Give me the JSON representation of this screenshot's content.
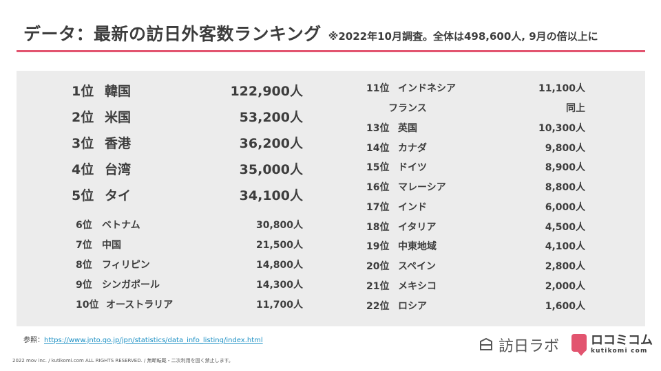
{
  "header": {
    "title": "データ：最新の訪日外客数ランキング",
    "note": "※2022年10月調査。全体は498,600人, 9月の倍以上に"
  },
  "ranking_left_top": [
    {
      "rank": "1位",
      "country": "韓国",
      "value": "122,900人"
    },
    {
      "rank": "2位",
      "country": "米国",
      "value": "53,200人"
    },
    {
      "rank": "3位",
      "country": "香港",
      "value": "36,200人"
    },
    {
      "rank": "4位",
      "country": "台湾",
      "value": "35,000人"
    },
    {
      "rank": "5位",
      "country": "タイ",
      "value": "34,100人"
    }
  ],
  "ranking_left_bottom": [
    {
      "rank": "6位",
      "country": "ベトナム",
      "value": "30,800人"
    },
    {
      "rank": "7位",
      "country": "中国",
      "value": "21,500人"
    },
    {
      "rank": "8位",
      "country": "フィリピン",
      "value": "14,800人"
    },
    {
      "rank": "9位",
      "country": "シンガポール",
      "value": "14,300人"
    },
    {
      "rank": "10位",
      "country": "オーストラリア",
      "value": "11,700人"
    }
  ],
  "ranking_right": [
    {
      "rank": "11位",
      "country": "インドネシア",
      "value": "11,100人"
    },
    {
      "rank": "",
      "country": "フランス",
      "value": "同上"
    },
    {
      "rank": "13位",
      "country": "英国",
      "value": "10,300人"
    },
    {
      "rank": "14位",
      "country": "カナダ",
      "value": "9,800人"
    },
    {
      "rank": "15位",
      "country": "ドイツ",
      "value": "8,900人"
    },
    {
      "rank": "16位",
      "country": "マレーシア",
      "value": "8,800人"
    },
    {
      "rank": "17位",
      "country": "インド",
      "value": "6,000人"
    },
    {
      "rank": "18位",
      "country": "イタリア",
      "value": "4,500人"
    },
    {
      "rank": "19位",
      "country": "中東地域",
      "value": "4,100人"
    },
    {
      "rank": "20位",
      "country": "スペイン",
      "value": "2,800人"
    },
    {
      "rank": "21位",
      "country": "メキシコ",
      "value": "2,000人"
    },
    {
      "rank": "22位",
      "country": "ロシア",
      "value": "1,600人"
    }
  ],
  "footer": {
    "ref_label": "参照：",
    "ref_link": "https://www.jnto.go.jp/jpn/statistics/data_info_listing/index.html",
    "copyright": "2022 mov inc. / kutikomi.com ALL RIGHTS RESERVED. / 無断転載・二次利用を固く禁止します。"
  },
  "logos": {
    "houjitsu_text": "訪日ラボ",
    "kutikomi_text": "ロコミコム",
    "kutikomi_sub": "kutikomi com"
  },
  "colors": {
    "accent": "#e2546f",
    "panel": "#ececec",
    "text": "#3d3d3d",
    "link": "#1a8fc4"
  }
}
